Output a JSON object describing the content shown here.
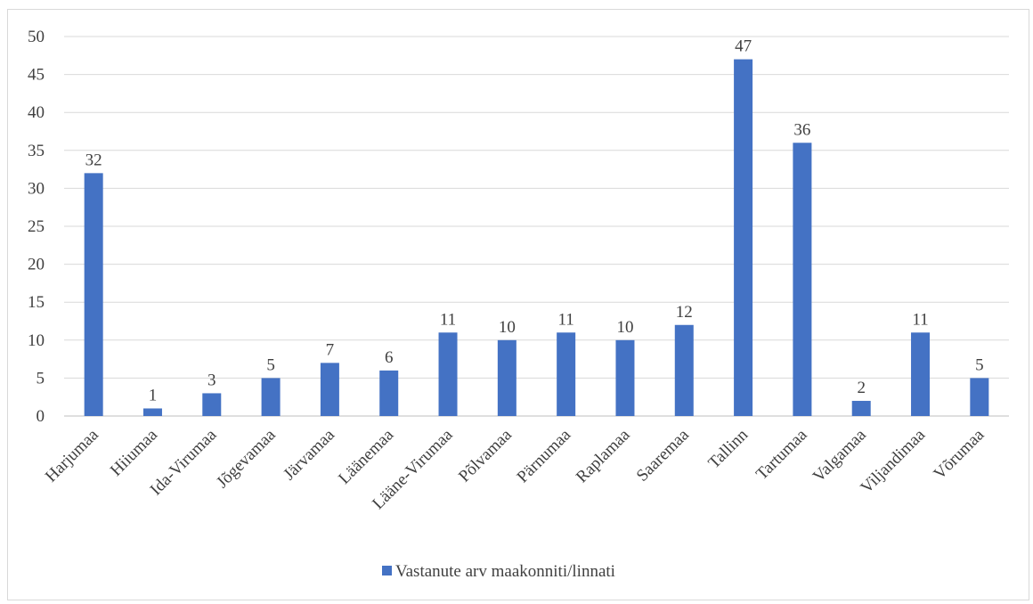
{
  "chart_data": {
    "type": "bar",
    "title": "",
    "xlabel": "",
    "ylabel": "",
    "categories": [
      "Harjumaa",
      "Hiiumaa",
      "Ida-Virumaa",
      "Jõgevamaa",
      "Järvamaa",
      "Läänemaa",
      "Lääne-Virumaa",
      "Põlvamaa",
      "Pärnumaa",
      "Raplamaa",
      "Saaremaa",
      "Tallinn",
      "Tartumaa",
      "Valgamaa",
      "Viljandimaa",
      "Võrumaa"
    ],
    "series": [
      {
        "name": "Vastanute arv maakonniti/linnati",
        "values": [
          32,
          1,
          3,
          5,
          7,
          6,
          11,
          10,
          11,
          10,
          12,
          47,
          36,
          2,
          11,
          5
        ],
        "color": "#4472c4"
      }
    ],
    "ylim": [
      0,
      50
    ],
    "yticks": [
      0,
      5,
      10,
      15,
      20,
      25,
      30,
      35,
      40,
      45,
      50
    ],
    "grid": true,
    "data_labels": true,
    "legend_position": "bottom"
  }
}
